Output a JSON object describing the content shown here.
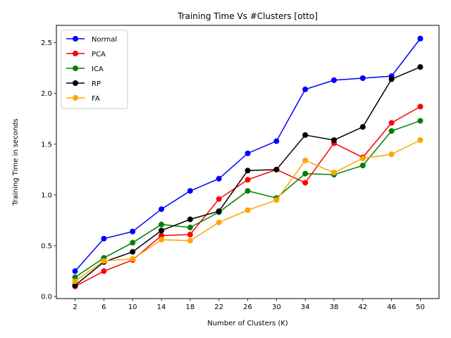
{
  "chart_data": {
    "type": "line",
    "title": "Training Time Vs #Clusters [otto]",
    "xlabel": "Number of Clusters (K)",
    "ylabel": "Training Time in seconds",
    "x": [
      2,
      6,
      10,
      14,
      18,
      22,
      26,
      30,
      34,
      38,
      42,
      46,
      50
    ],
    "ylim": [
      -0.02,
      2.67
    ],
    "yticks": [
      "0.0",
      "0.5",
      "1.0",
      "1.5",
      "2.0",
      "2.5"
    ],
    "ytick_values": [
      0.0,
      0.5,
      1.0,
      1.5,
      2.0,
      2.5
    ],
    "grid": false,
    "legend_position": "top-left",
    "series": [
      {
        "name": "Normal",
        "color": "#0000ff",
        "values": [
          0.25,
          0.57,
          0.64,
          0.86,
          1.04,
          1.16,
          1.41,
          1.53,
          2.04,
          2.13,
          2.15,
          2.17,
          2.54
        ]
      },
      {
        "name": "PCA",
        "color": "#ff0000",
        "values": [
          0.1,
          0.25,
          0.36,
          0.6,
          0.61,
          0.96,
          1.15,
          1.25,
          1.12,
          1.51,
          1.37,
          1.71,
          1.87
        ]
      },
      {
        "name": "ICA",
        "color": "#008000",
        "values": [
          0.19,
          0.38,
          0.53,
          0.71,
          0.68,
          0.83,
          1.04,
          0.97,
          1.21,
          1.2,
          1.29,
          1.63,
          1.73
        ]
      },
      {
        "name": "RP",
        "color": "#000000",
        "values": [
          0.11,
          0.34,
          0.44,
          0.65,
          0.76,
          0.84,
          1.24,
          1.25,
          1.59,
          1.54,
          1.67,
          2.14,
          2.26
        ]
      },
      {
        "name": "FA",
        "color": "#ffa500",
        "values": [
          0.15,
          0.35,
          0.37,
          0.56,
          0.55,
          0.73,
          0.85,
          0.95,
          1.34,
          1.22,
          1.36,
          1.4,
          1.54
        ]
      }
    ]
  }
}
